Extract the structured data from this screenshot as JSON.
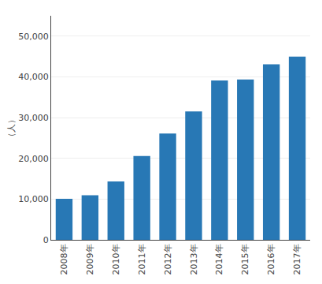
{
  "chart_data": {
    "type": "bar",
    "ylabel": "（人）",
    "categories": [
      "2008年",
      "2009年",
      "2010年",
      "2011年",
      "2012年",
      "2013年",
      "2014年",
      "2015年",
      "2016年",
      "2017年"
    ],
    "values": [
      10075,
      10926,
      14352,
      20586,
      26085,
      31505,
      39136,
      39358,
      43110,
      44988
    ],
    "color": "#2878b5",
    "ylim": [
      0,
      55000
    ],
    "yticks": [
      0,
      {
        "value": 10000,
        "label": "10,000"
      },
      {
        "value": 20000,
        "label": "20,000"
      },
      {
        "value": 30000,
        "label": "30,000"
      },
      {
        "value": 40000,
        "label": "40,000"
      },
      {
        "value": 50000,
        "label": "50,000"
      }
    ],
    "grid": true
  }
}
